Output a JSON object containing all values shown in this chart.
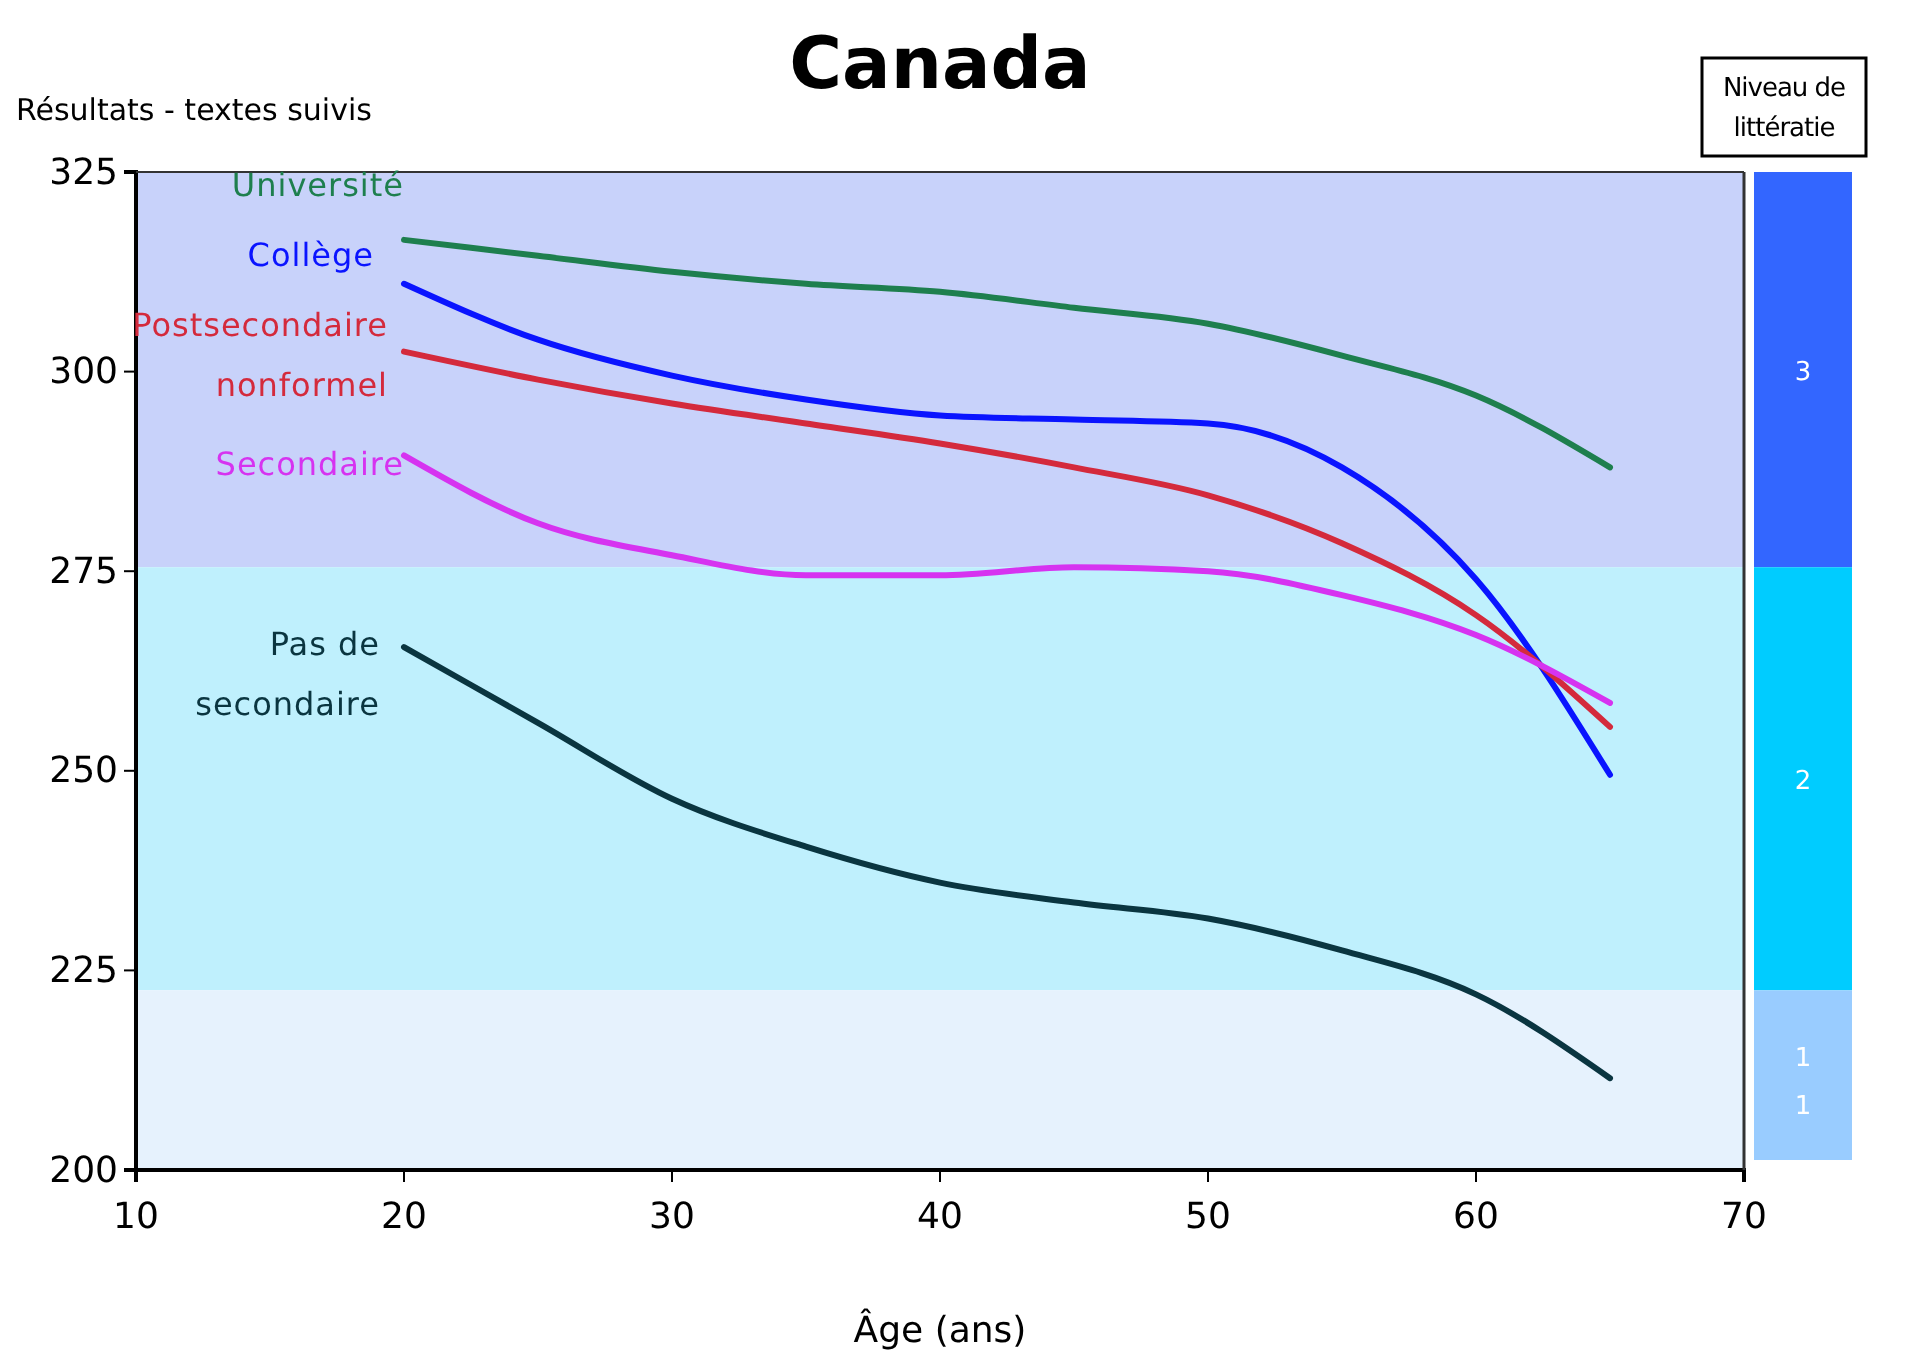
{
  "chart_data": {
    "type": "line",
    "title": "Canada",
    "ylabel": "Résultats - textes suivis",
    "xlabel": "Âge (ans)",
    "legend_title": "Niveau de littératie",
    "xlim": [
      10,
      70
    ],
    "xticks": [
      10,
      20,
      30,
      40,
      50,
      60,
      70
    ],
    "ylim": [
      200,
      325
    ],
    "yticks": [
      200,
      225,
      250,
      275,
      300,
      325
    ],
    "x": [
      20,
      25,
      30,
      35,
      40,
      45,
      50,
      55,
      60,
      65
    ],
    "series": [
      {
        "name": "Université",
        "color": "#1e7f4e",
        "values": [
          316.5,
          314.5,
          312.5,
          311,
          310,
          308,
          306,
          302,
          297,
          288
        ]
      },
      {
        "name": "Collège",
        "color": "#0a14ff",
        "values": [
          311,
          304,
          299.5,
          296.5,
          294.5,
          294,
          293.5,
          288,
          274,
          249.5
        ]
      },
      {
        "name": "Postsecondaire nonformel",
        "color": "#d42a3c",
        "values": [
          302.5,
          299,
          296,
          293.5,
          291,
          288,
          284.5,
          278.5,
          269.5,
          255.5
        ]
      },
      {
        "name": "Secondaire",
        "color": "#d633f0",
        "values": [
          289.5,
          281,
          277,
          274.5,
          274.5,
          275.5,
          275,
          272,
          267,
          258.5
        ]
      },
      {
        "name": "Pas de secondaire",
        "color": "#0a3540",
        "values": [
          265.5,
          256,
          246.5,
          240.5,
          236,
          233.5,
          231.5,
          227.5,
          222,
          211.5
        ]
      }
    ],
    "bands": [
      {
        "axis": "y",
        "from": 275.5,
        "to": 325,
        "label": "3",
        "color": "#c8d2fa"
      },
      {
        "axis": "y",
        "from": 222.5,
        "to": 275.5,
        "label": "2",
        "color": "#bff0fd"
      },
      {
        "axis": "y",
        "from": 200,
        "to": 222.5,
        "label": "1",
        "color": "#e6f2fd"
      }
    ],
    "annotations": [
      "1"
    ],
    "legend": "right",
    "grid": false,
    "marker": "none",
    "line_style": "solid"
  }
}
